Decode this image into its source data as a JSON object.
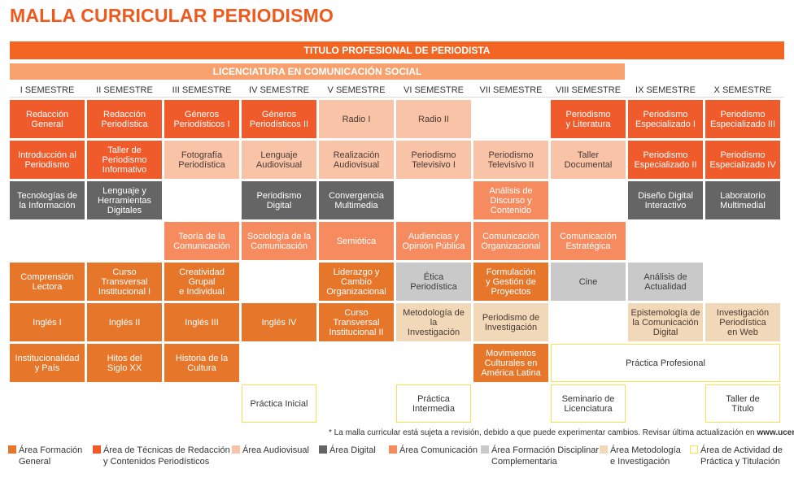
{
  "title": "MALLA CURRICULAR PERIODISMO",
  "banner_title": "TITULO PROFESIONAL DE PERIODISTA",
  "banner_degree": "LICENCIATURA EN COMUNICACIÓN SOCIAL",
  "semesters": [
    "I SEMESTRE",
    "II SEMESTRE",
    "III SEMESTRE",
    "IV SEMESTRE",
    "V SEMESTRE",
    "VI SEMESTRE",
    "VII SEMESTRE",
    "VIII SEMESTRE",
    "IX SEMESTRE",
    "X SEMESTRE"
  ],
  "courses": [
    {
      "col": 0,
      "row": 0,
      "label": "Redacción\nGeneral",
      "area": "tr"
    },
    {
      "col": 1,
      "row": 0,
      "label": "Redacción\nPeriodística",
      "area": "tr"
    },
    {
      "col": 2,
      "row": 0,
      "label": "Géneros\nPeriodísticos I",
      "area": "tr"
    },
    {
      "col": 3,
      "row": 0,
      "label": "Géneros\nPeriodísticos II",
      "area": "tr"
    },
    {
      "col": 4,
      "row": 0,
      "label": "Radio I",
      "area": "au"
    },
    {
      "col": 5,
      "row": 0,
      "label": "Radio II",
      "area": "au"
    },
    {
      "col": 7,
      "row": 0,
      "label": "Periodismo\ny Literatura",
      "area": "tr"
    },
    {
      "col": 8,
      "row": 0,
      "label": "Periodismo\nEspecializado I",
      "area": "tr"
    },
    {
      "col": 9,
      "row": 0,
      "label": "Periodismo\nEspecializado III",
      "area": "tr"
    },
    {
      "col": 0,
      "row": 1,
      "label": "Introducción al\nPeriodismo",
      "area": "tr"
    },
    {
      "col": 1,
      "row": 1,
      "label": "Taller de\nPeriodismo\nInformativo",
      "area": "tr"
    },
    {
      "col": 2,
      "row": 1,
      "label": "Fotografía\nPeriodística",
      "area": "au"
    },
    {
      "col": 3,
      "row": 1,
      "label": "Lenguaje\nAudiovisual",
      "area": "au"
    },
    {
      "col": 4,
      "row": 1,
      "label": "Realización\nAudiovisual",
      "area": "au"
    },
    {
      "col": 5,
      "row": 1,
      "label": "Periodismo\nTelevisivo I",
      "area": "au"
    },
    {
      "col": 6,
      "row": 1,
      "label": "Periodismo\nTelevisivo II",
      "area": "au"
    },
    {
      "col": 7,
      "row": 1,
      "label": "Taller\nDocumental",
      "area": "au"
    },
    {
      "col": 8,
      "row": 1,
      "label": "Periodismo\nEspecializado II",
      "area": "tr"
    },
    {
      "col": 9,
      "row": 1,
      "label": "Periodismo\nEspecializado IV",
      "area": "tr"
    },
    {
      "col": 0,
      "row": 2,
      "label": "Tecnologías de\nla Información",
      "area": "di"
    },
    {
      "col": 1,
      "row": 2,
      "label": "Lenguaje y\nHerramientas\nDigitales",
      "area": "di"
    },
    {
      "col": 3,
      "row": 2,
      "label": "Periodismo\nDigital",
      "area": "di"
    },
    {
      "col": 4,
      "row": 2,
      "label": "Convergencia\nMultimedia",
      "area": "di"
    },
    {
      "col": 6,
      "row": 2,
      "label": "Análisis de\nDiscurso y\nContenido",
      "area": "co"
    },
    {
      "col": 8,
      "row": 2,
      "label": "Diseño Digital\nInteractivo",
      "area": "di"
    },
    {
      "col": 9,
      "row": 2,
      "label": "Laboratorio\nMultimedial",
      "area": "di"
    },
    {
      "col": 2,
      "row": 3,
      "label": "Teoría de la\nComunicación",
      "area": "co"
    },
    {
      "col": 3,
      "row": 3,
      "label": "Sociología de la\nComunicación",
      "area": "co"
    },
    {
      "col": 4,
      "row": 3,
      "label": "Semiótica",
      "area": "co"
    },
    {
      "col": 5,
      "row": 3,
      "label": "Audiencias y\nOpinión Pública",
      "area": "co"
    },
    {
      "col": 6,
      "row": 3,
      "label": "Comunicación\nOrganizacional",
      "area": "co"
    },
    {
      "col": 7,
      "row": 3,
      "label": "Comunicación\nEstratégica",
      "area": "co"
    },
    {
      "col": 0,
      "row": 4,
      "label": "Comprensión\nLectora",
      "area": "fg"
    },
    {
      "col": 1,
      "row": 4,
      "label": "Curso Transversal\nInstitucional I",
      "area": "fg"
    },
    {
      "col": 2,
      "row": 4,
      "label": "Creatividad Grupal\ne Individual",
      "area": "fg"
    },
    {
      "col": 4,
      "row": 4,
      "label": "Liderazgo y Cambio\nOrganizacional",
      "area": "fg"
    },
    {
      "col": 5,
      "row": 4,
      "label": "Ética\nPeriodística",
      "area": "fd"
    },
    {
      "col": 6,
      "row": 4,
      "label": "Formulación\ny Gestión de\nProyectos",
      "area": "fg"
    },
    {
      "col": 7,
      "row": 4,
      "label": "Cine",
      "area": "fd"
    },
    {
      "col": 8,
      "row": 4,
      "label": "Análisis de\nActualidad",
      "area": "fd"
    },
    {
      "col": 0,
      "row": 5,
      "label": "Inglés I",
      "area": "fg"
    },
    {
      "col": 1,
      "row": 5,
      "label": "Inglés II",
      "area": "fg"
    },
    {
      "col": 2,
      "row": 5,
      "label": "Inglés III",
      "area": "fg"
    },
    {
      "col": 3,
      "row": 5,
      "label": "Inglés IV",
      "area": "fg"
    },
    {
      "col": 4,
      "row": 5,
      "label": "Curso Transversal\nInstitucional II",
      "area": "fg"
    },
    {
      "col": 5,
      "row": 5,
      "label": "Metodología de la\nInvestigación",
      "area": "me"
    },
    {
      "col": 6,
      "row": 5,
      "label": "Periodismo de\nInvestigación",
      "area": "me"
    },
    {
      "col": 8,
      "row": 5,
      "label": "Epistemología de\nla Comunicación\nDigital",
      "area": "me"
    },
    {
      "col": 9,
      "row": 5,
      "label": "Investigación\nPeriodística\nen Web",
      "area": "me"
    },
    {
      "col": 0,
      "row": 6,
      "label": "Institucionalidad\ny País",
      "area": "fg"
    },
    {
      "col": 1,
      "row": 6,
      "label": "Hitos del\nSiglo XX",
      "area": "fg"
    },
    {
      "col": 2,
      "row": 6,
      "label": "Historia de la\nCultura",
      "area": "fg"
    },
    {
      "col": 6,
      "row": 6,
      "label": "Movimientos\nCulturales en\nAmérica Latina",
      "area": "fg"
    },
    {
      "col": 7,
      "row": 6,
      "span": 3,
      "label": "Práctica Profesional",
      "area": "ac"
    },
    {
      "col": 3,
      "row": 7,
      "label": "Práctica Inicial",
      "area": "ac"
    },
    {
      "col": 5,
      "row": 7,
      "label": "Práctica\nIntermedia",
      "area": "ac"
    },
    {
      "col": 7,
      "row": 7,
      "label": "Seminario de\nLicenciatura",
      "area": "ac"
    },
    {
      "col": 9,
      "row": 7,
      "label": "Taller de\nTítulo",
      "area": "ac"
    }
  ],
  "note_text": "* La malla curricular está sujeta a revisión, debido a que puede experimentar cambios. Revisar última actualización en ",
  "note_url": "www.ucentral.cl",
  "legend": [
    {
      "area": "fg",
      "label": "Área Formación\nGeneral",
      "color": "#e5762a"
    },
    {
      "area": "tr",
      "label": "Área de Técnicas de Redacción\ny Contenidos Periodísticos",
      "color": "#ef5b2b"
    },
    {
      "area": "au",
      "label": "Área Audiovisual",
      "color": "#f8c3a6"
    },
    {
      "area": "di",
      "label": "Área Digital",
      "color": "#656565"
    },
    {
      "area": "co",
      "label": "Área Comunicación",
      "color": "#f58b5e"
    },
    {
      "area": "fd",
      "label": "Área Formación Disciplinar\nComplementaria",
      "color": "#c9c9c9"
    },
    {
      "area": "me",
      "label": "Área Metodología\ne Investigación",
      "color": "#f1d8b8"
    },
    {
      "area": "ac",
      "label": "Área de Actividad de\nPráctica y Titulación",
      "color": "#ffffff"
    }
  ]
}
